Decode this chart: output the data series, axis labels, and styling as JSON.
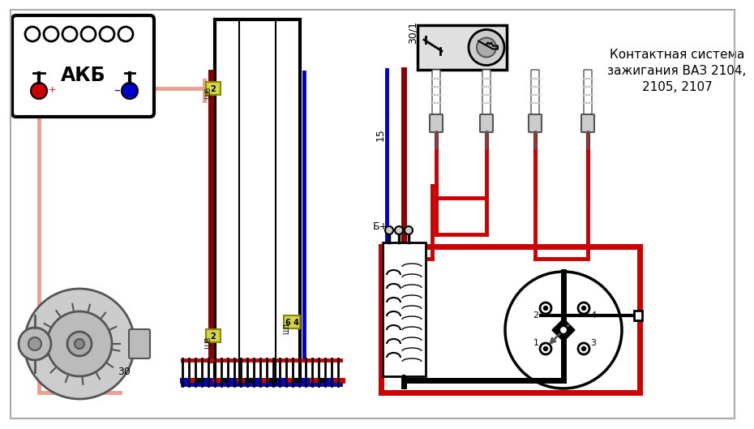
{
  "title": "Контактная система\nзажигания ВАЗ 2104,\n2105, 2107",
  "bg_color": "#ffffff",
  "pink": "#e8a090",
  "dark_red": "#880000",
  "red": "#cc0000",
  "blue": "#0000cc",
  "black": "#000000",
  "gray": "#888888",
  "lgray": "#cccccc",
  "dgray": "#555555",
  "conn_fill": "#d4d44a",
  "conn_edge": "#888800",
  "lw_wire": 3.5,
  "lw_thick": 5.0
}
